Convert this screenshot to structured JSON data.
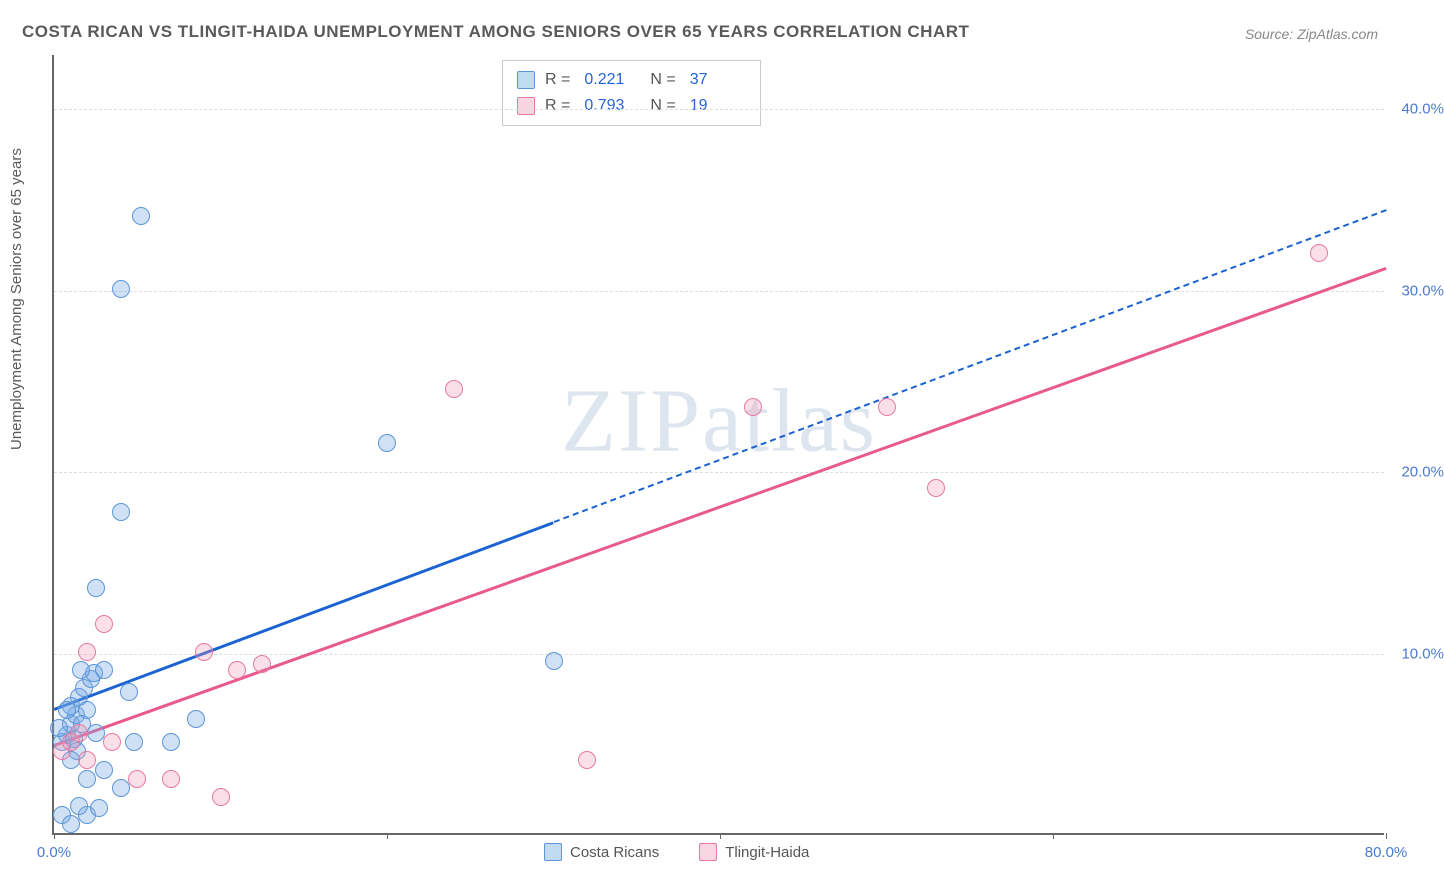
{
  "title": "COSTA RICAN VS TLINGIT-HAIDA UNEMPLOYMENT AMONG SENIORS OVER 65 YEARS CORRELATION CHART",
  "source": "Source: ZipAtlas.com",
  "ylabel": "Unemployment Among Seniors over 65 years",
  "watermark": "ZIPatlas",
  "chart": {
    "type": "scatter",
    "xlim": [
      0,
      80
    ],
    "ylim": [
      0,
      43
    ],
    "background_color": "#ffffff",
    "grid_color": "#dddddd",
    "axis_color": "#666666",
    "tick_color": "#4a7bd0",
    "xticks": [
      {
        "v": 0,
        "label": "0.0%"
      },
      {
        "v": 20,
        "label": ""
      },
      {
        "v": 40,
        "label": ""
      },
      {
        "v": 60,
        "label": ""
      },
      {
        "v": 80,
        "label": "80.0%"
      }
    ],
    "yticks": [
      {
        "v": 10,
        "label": "10.0%"
      },
      {
        "v": 20,
        "label": "20.0%"
      },
      {
        "v": 30,
        "label": "30.0%"
      },
      {
        "v": 40,
        "label": "40.0%"
      }
    ],
    "series": [
      {
        "name": "Costa Ricans",
        "color": "#5b96d8",
        "fill": "rgba(120,170,230,0.35)",
        "r": 0.221,
        "n": 37,
        "trend": {
          "x1": 0,
          "y1": 7.0,
          "x2": 30,
          "y2": 17.3,
          "color": "#1a63d1",
          "dash_after_x": 30,
          "x2_full": 80,
          "y2_full": 34.5
        },
        "points": [
          {
            "x": 0.5,
            "y": 5.0
          },
          {
            "x": 0.8,
            "y": 5.4
          },
          {
            "x": 1.0,
            "y": 6.0
          },
          {
            "x": 1.2,
            "y": 5.2
          },
          {
            "x": 1.3,
            "y": 6.5
          },
          {
            "x": 1.5,
            "y": 7.5
          },
          {
            "x": 1.8,
            "y": 8.0
          },
          {
            "x": 1.4,
            "y": 4.5
          },
          {
            "x": 2.0,
            "y": 6.8
          },
          {
            "x": 2.2,
            "y": 8.5
          },
          {
            "x": 2.4,
            "y": 8.8
          },
          {
            "x": 1.0,
            "y": 4.0
          },
          {
            "x": 2.0,
            "y": 3.0
          },
          {
            "x": 3.0,
            "y": 3.5
          },
          {
            "x": 4.0,
            "y": 2.5
          },
          {
            "x": 2.0,
            "y": 1.0
          },
          {
            "x": 1.5,
            "y": 1.5
          },
          {
            "x": 0.5,
            "y": 1.0
          },
          {
            "x": 1.0,
            "y": 0.5
          },
          {
            "x": 2.7,
            "y": 1.4
          },
          {
            "x": 4.8,
            "y": 5.0
          },
          {
            "x": 7.0,
            "y": 5.0
          },
          {
            "x": 8.5,
            "y": 6.3
          },
          {
            "x": 4.5,
            "y": 7.8
          },
          {
            "x": 2.5,
            "y": 13.5
          },
          {
            "x": 4.0,
            "y": 17.7
          },
          {
            "x": 4.0,
            "y": 30.0
          },
          {
            "x": 5.2,
            "y": 34.0
          },
          {
            "x": 20.0,
            "y": 21.5
          },
          {
            "x": 30.0,
            "y": 9.5
          },
          {
            "x": 2.5,
            "y": 5.5
          },
          {
            "x": 1.7,
            "y": 6.0
          },
          {
            "x": 1.0,
            "y": 7.0
          },
          {
            "x": 0.3,
            "y": 5.8
          },
          {
            "x": 0.8,
            "y": 6.8
          },
          {
            "x": 1.6,
            "y": 9.0
          },
          {
            "x": 3.0,
            "y": 9.0
          }
        ]
      },
      {
        "name": "Tlingit-Haida",
        "color": "#e77aa3",
        "fill": "rgba(240,150,180,0.3)",
        "r": 0.793,
        "n": 19,
        "trend": {
          "x1": 0,
          "y1": 5.0,
          "x2": 80,
          "y2": 31.3,
          "color": "#e85a8e",
          "dash_after_x": 80,
          "x2_full": 80,
          "y2_full": 31.3
        },
        "points": [
          {
            "x": 0.5,
            "y": 4.5
          },
          {
            "x": 1.0,
            "y": 5.0
          },
          {
            "x": 2.0,
            "y": 4.0
          },
          {
            "x": 2.0,
            "y": 10.0
          },
          {
            "x": 3.0,
            "y": 11.5
          },
          {
            "x": 5.0,
            "y": 3.0
          },
          {
            "x": 7.0,
            "y": 3.0
          },
          {
            "x": 10.0,
            "y": 2.0
          },
          {
            "x": 9.0,
            "y": 10.0
          },
          {
            "x": 11.0,
            "y": 9.0
          },
          {
            "x": 12.5,
            "y": 9.3
          },
          {
            "x": 24.0,
            "y": 24.5
          },
          {
            "x": 32.0,
            "y": 4.0
          },
          {
            "x": 42.0,
            "y": 23.5
          },
          {
            "x": 50.0,
            "y": 23.5
          },
          {
            "x": 53.0,
            "y": 19.0
          },
          {
            "x": 76.0,
            "y": 32.0
          },
          {
            "x": 1.5,
            "y": 5.5
          },
          {
            "x": 3.5,
            "y": 5.0
          }
        ]
      }
    ]
  },
  "legend_top": {
    "rows": [
      {
        "swatch": "blue",
        "r_label": "R  =",
        "r": "0.221",
        "n_label": "N  =",
        "n": "37"
      },
      {
        "swatch": "pink",
        "r_label": "R  =",
        "r": "0.793",
        "n_label": "N  =",
        "n": "19"
      }
    ]
  },
  "legend_bottom": {
    "items": [
      {
        "swatch": "blue",
        "label": "Costa Ricans"
      },
      {
        "swatch": "pink",
        "label": "Tlingit-Haida"
      }
    ]
  }
}
